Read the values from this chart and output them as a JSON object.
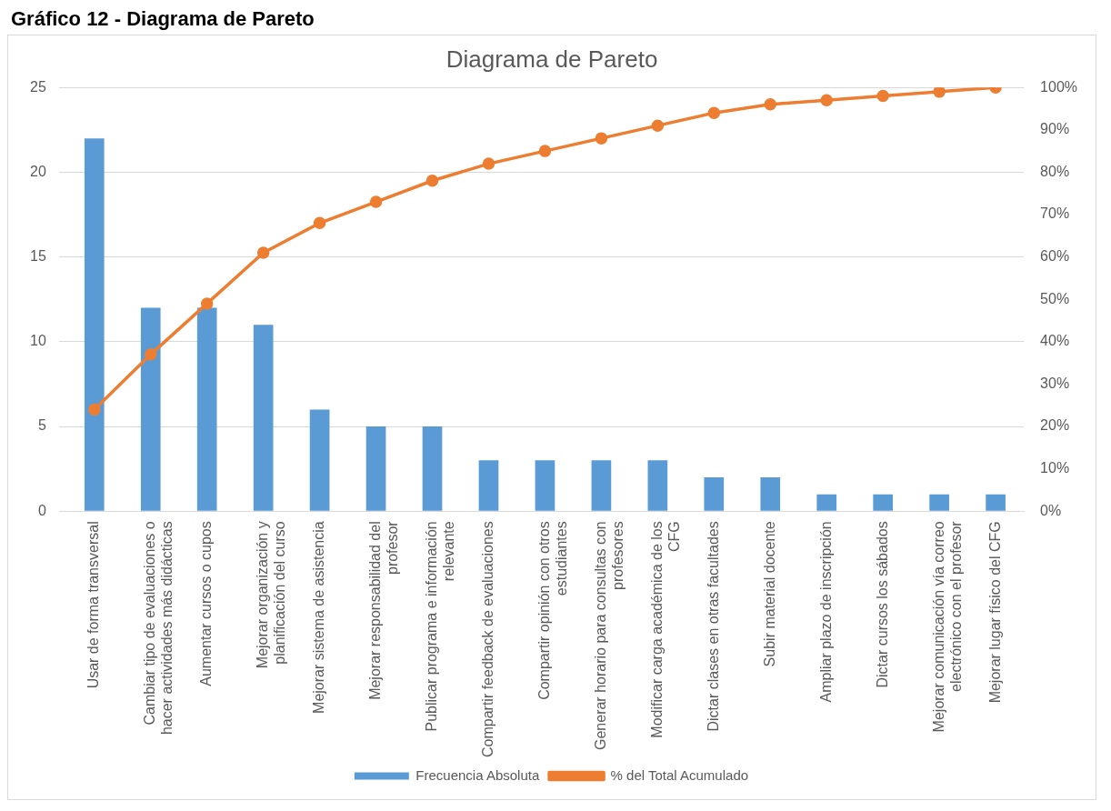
{
  "chart_data": {
    "type": "bar",
    "title": "Diagrama de Pareto",
    "annotations": [
      "Gráfico 12 - Diagrama de Pareto"
    ],
    "categories": [
      "Usar de forma transversal",
      "Cambiar tipo de evaluaciones o hacer actividades más didácticas",
      "Aumentar cursos o cupos",
      "Mejorar organización y planificación del curso",
      "Mejorar sistema de asistencia",
      "Mejorar responsabilidad del profesor",
      "Publicar programa e información relevante",
      "Compartir feedback de evaluaciones",
      "Compartir opinión con otros estudiantes",
      "Generar horario para consultas con profesores",
      "Modificar carga académica de los CFG",
      "Dictar clases en otras facultades",
      "Subir material docente",
      "Ampliar plazo de inscripción",
      "Dictar cursos los sábados",
      "Mejorar comunicación vía correo electrónico con el profesor",
      "Mejorar lugar físico del CFG"
    ],
    "series": [
      {
        "name": "Frecuencia Absoluta",
        "color": "#5b9bd5",
        "values": [
          22,
          12,
          12,
          11,
          6,
          5,
          5,
          3,
          3,
          3,
          3,
          2,
          2,
          1,
          1,
          1,
          1
        ]
      },
      {
        "name": "% del Total Acumulado",
        "type": "line",
        "axis": "y2",
        "color": "#ed7d31",
        "marker": "circle",
        "values": [
          24,
          37,
          49,
          61,
          68,
          73,
          78,
          82,
          85,
          88,
          91,
          94,
          96,
          97,
          98,
          99,
          100
        ]
      }
    ],
    "ylim": [
      0,
      25
    ],
    "yticks": [
      0,
      5,
      10,
      15,
      20,
      25
    ],
    "y2lim": [
      0,
      100
    ],
    "y2ticks": [
      {
        "value": 0,
        "label": "0%"
      },
      {
        "value": 10,
        "label": "10%"
      },
      {
        "value": 20,
        "label": "20%"
      },
      {
        "value": 30,
        "label": "30%"
      },
      {
        "value": 40,
        "label": "40%"
      },
      {
        "value": 50,
        "label": "50%"
      },
      {
        "value": 60,
        "label": "60%"
      },
      {
        "value": 70,
        "label": "70%"
      },
      {
        "value": 80,
        "label": "80%"
      },
      {
        "value": 90,
        "label": "90%"
      },
      {
        "value": 100,
        "label": "100%"
      }
    ],
    "grid": "y",
    "legend": "bottom"
  }
}
